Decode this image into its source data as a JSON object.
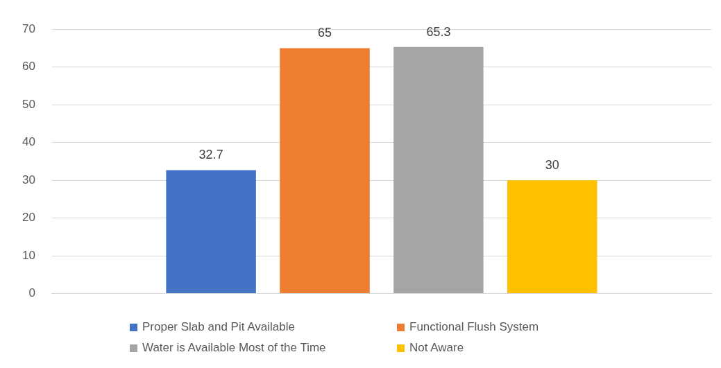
{
  "chart_data": {
    "type": "bar",
    "categories": [
      null
    ],
    "series": [
      {
        "name": "Proper Slab and Pit Available",
        "color": "#4472c4",
        "values": [
          32.7
        ]
      },
      {
        "name": "Functional Flush System",
        "color": "#ed7d31",
        "values": [
          65
        ]
      },
      {
        "name": "Water is Available Most of the Time",
        "color": "#a5a5a5",
        "values": [
          65.3
        ]
      },
      {
        "name": "Not Aware",
        "color": "#ffc000",
        "values": [
          30
        ]
      }
    ],
    "ylim": [
      0,
      70
    ],
    "yticks": [
      0,
      10,
      20,
      30,
      40,
      50,
      60,
      70
    ],
    "grid": "y",
    "legend": "bottom",
    "data_labels": true
  }
}
